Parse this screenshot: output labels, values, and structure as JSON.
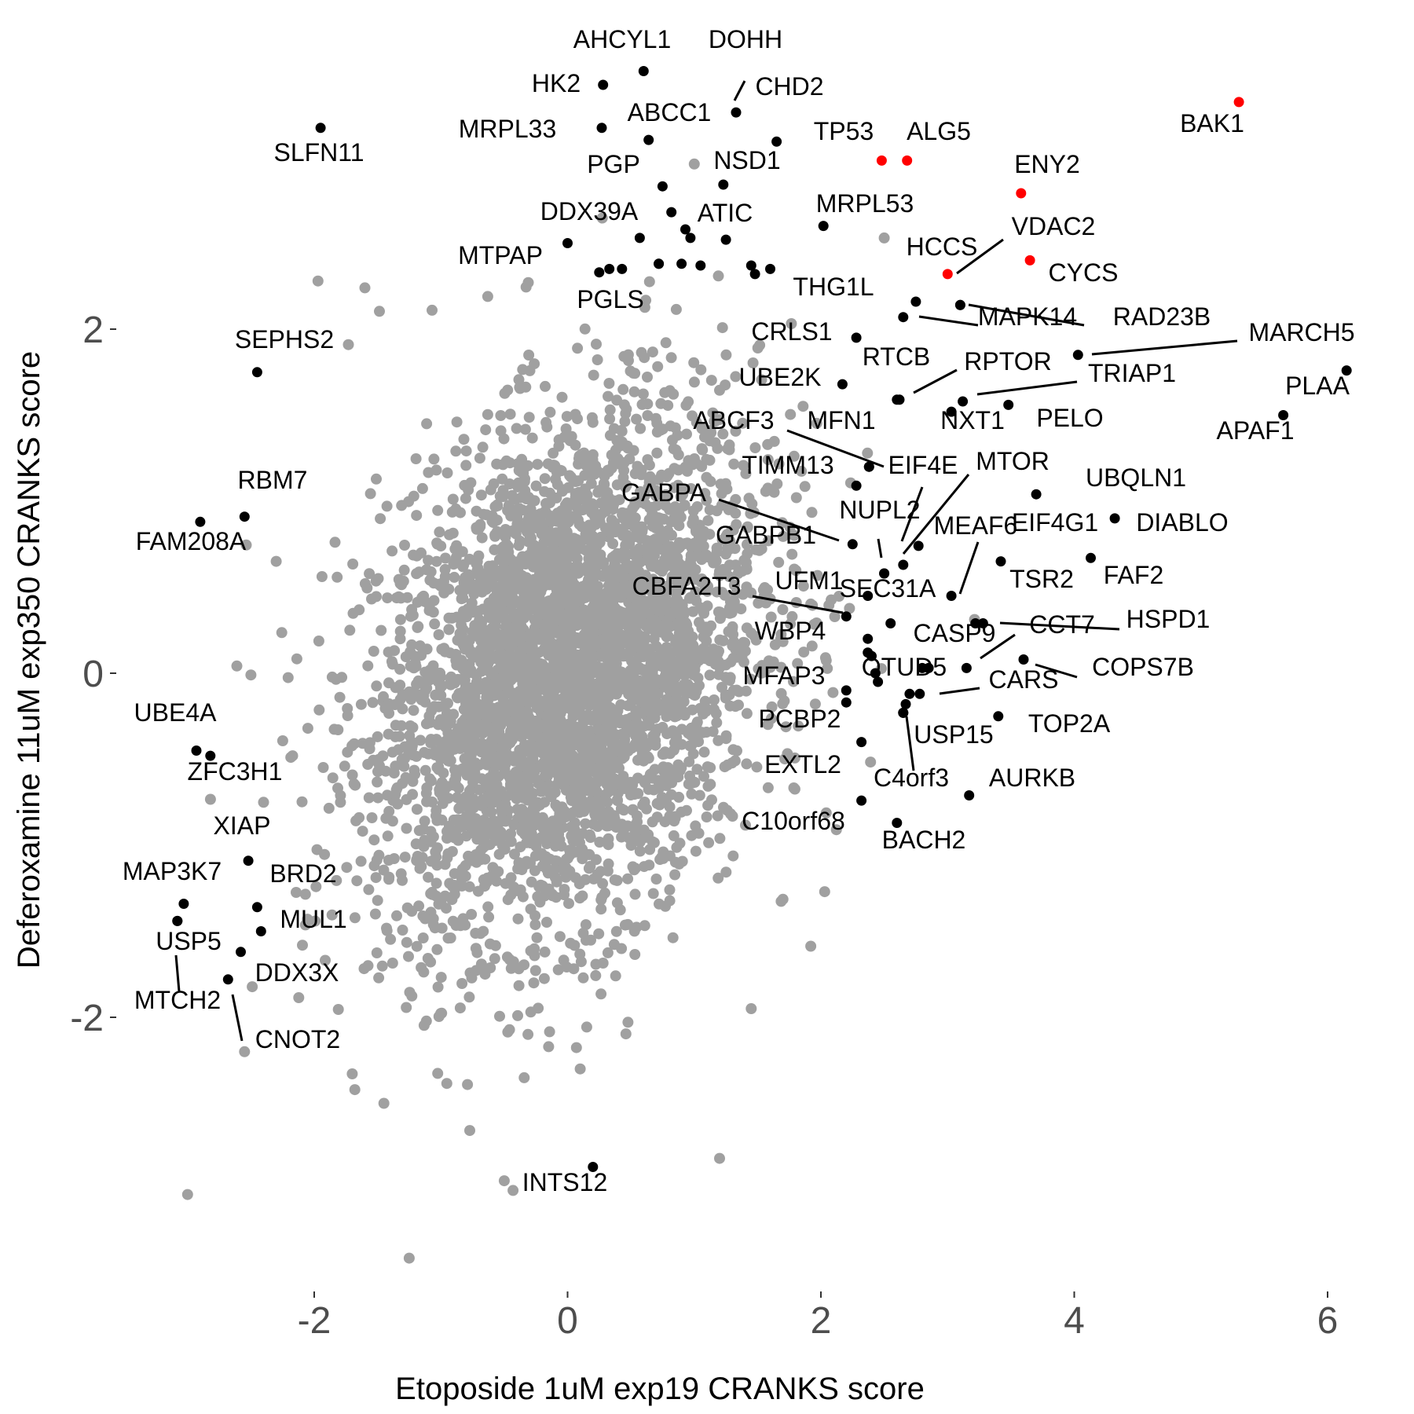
{
  "chart_data": {
    "type": "scatter",
    "title": "",
    "xlabel": "Etoposide 1uM exp19 CRANKS score",
    "ylabel": "Deferoxamine 11uM exp350 CRANKS score",
    "xlim": [
      -3.2,
      6.3
    ],
    "ylim": [
      -3.55,
      3.55
    ],
    "x_ticks": [
      -2,
      0,
      2,
      4,
      6
    ],
    "x_tick_labels": [
      "-2",
      "0",
      "2",
      "4",
      "6"
    ],
    "y_ticks": [
      -2,
      0,
      2
    ],
    "y_tick_labels": [
      "-2",
      "0",
      "2"
    ],
    "grid": false,
    "legend": "none",
    "colors": {
      "background_points": "#a0a0a0",
      "labeled_points": "#000000",
      "highlighted_points": "#ff0000",
      "tick_labels": "#4d4d4d"
    },
    "background_cloud": {
      "n": 4000,
      "x_mean": 0.0,
      "y_mean": 0.0,
      "x_sd": 0.75,
      "y_sd": 0.75,
      "corr": 0.3
    },
    "background_outliers": [
      [
        -1.97,
        2.28
      ],
      [
        -1.6,
        2.24
      ],
      [
        -1.73,
        1.91
      ],
      [
        -1.07,
        2.11
      ],
      [
        -0.63,
        2.19
      ],
      [
        1.0,
        2.96
      ],
      [
        2.5,
        2.53
      ],
      [
        -2.05,
        -0.32
      ],
      [
        -3.0,
        -3.03
      ],
      [
        -1.25,
        -3.4
      ],
      [
        -0.5,
        -2.95
      ],
      [
        1.2,
        -2.82
      ],
      [
        2.03,
        -1.27
      ],
      [
        -2.5,
        -0.01
      ],
      [
        -2.4,
        -0.75
      ],
      [
        0.1,
        -2.3
      ],
      [
        -1.45,
        -2.5
      ],
      [
        1.45,
        -1.95
      ],
      [
        -2.55,
        -2.2
      ],
      [
        -2.3,
        0.65
      ]
    ],
    "points": [
      {
        "gene": "AHCYL1",
        "x": 0.6,
        "y": 3.5,
        "highlight": false
      },
      {
        "gene": "HK2",
        "x": 0.28,
        "y": 3.42,
        "highlight": false
      },
      {
        "gene": "DOHH",
        "x": 1.33,
        "y": 3.26,
        "highlight": false
      },
      {
        "gene": "CHD2",
        "x": 1.65,
        "y": 3.09,
        "highlight": false
      },
      {
        "gene": "MRPL33",
        "x": 0.27,
        "y": 3.17,
        "highlight": false
      },
      {
        "gene": "ABCC1",
        "x": 0.64,
        "y": 3.1,
        "highlight": false
      },
      {
        "gene": "SLFN11",
        "x": -1.95,
        "y": 3.17,
        "highlight": false
      },
      {
        "gene": "BAK1",
        "x": 5.3,
        "y": 3.32,
        "highlight": true
      },
      {
        "gene": "TP53",
        "x": 2.48,
        "y": 2.98,
        "highlight": true
      },
      {
        "gene": "ALG5",
        "x": 2.68,
        "y": 2.98,
        "highlight": true
      },
      {
        "gene": "ENY2",
        "x": 3.58,
        "y": 2.79,
        "highlight": true
      },
      {
        "gene": "CYCS",
        "x": 3.65,
        "y": 2.4,
        "highlight": true
      },
      {
        "gene": "HCCS",
        "x": 3.0,
        "y": 2.32,
        "highlight": true
      },
      {
        "gene": "NSD1",
        "x": 1.23,
        "y": 2.84,
        "highlight": false
      },
      {
        "gene": "PGP",
        "x": 0.75,
        "y": 2.83,
        "highlight": false
      },
      {
        "gene": "DDX39A",
        "x": 0.82,
        "y": 2.68,
        "highlight": false
      },
      {
        "gene": "ATIC",
        "x": 0.93,
        "y": 2.58,
        "highlight": false
      },
      {
        "gene": "MTPAP",
        "x": 0.0,
        "y": 2.5,
        "highlight": false
      },
      {
        "gene": "PGLS",
        "x": 0.72,
        "y": 2.38,
        "highlight": false
      },
      {
        "gene": "MRPL53",
        "x": 2.02,
        "y": 2.6,
        "highlight": false
      },
      {
        "gene": "VDAC2",
        "x": 3.1,
        "y": 2.14,
        "highlight": false
      },
      {
        "gene": "THG1L",
        "x": 2.75,
        "y": 2.16,
        "highlight": false
      },
      {
        "gene": "MAPK14",
        "x": 2.65,
        "y": 2.07,
        "highlight": false
      },
      {
        "gene": "RAD23B",
        "x": 3.1,
        "y": 2.14,
        "highlight": false
      },
      {
        "gene": "CRLS1",
        "x": 2.28,
        "y": 1.95,
        "highlight": false
      },
      {
        "gene": "MARCH5",
        "x": 4.03,
        "y": 1.85,
        "highlight": false
      },
      {
        "gene": "SEPHS2",
        "x": -2.45,
        "y": 1.75,
        "highlight": false
      },
      {
        "gene": "RTCB",
        "x": 2.6,
        "y": 1.59,
        "highlight": false
      },
      {
        "gene": "RPTOR",
        "x": 2.62,
        "y": 1.59,
        "highlight": false
      },
      {
        "gene": "UBE2K",
        "x": 2.17,
        "y": 1.68,
        "highlight": false
      },
      {
        "gene": "TRIAP1",
        "x": 3.12,
        "y": 1.58,
        "highlight": false
      },
      {
        "gene": "NXT1",
        "x": 3.03,
        "y": 1.52,
        "highlight": false
      },
      {
        "gene": "PELO",
        "x": 3.48,
        "y": 1.56,
        "highlight": false
      },
      {
        "gene": "PLAA",
        "x": 6.15,
        "y": 1.76,
        "highlight": false
      },
      {
        "gene": "APAF1",
        "x": 5.65,
        "y": 1.5,
        "highlight": false
      },
      {
        "gene": "ABCF3",
        "x": 2.38,
        "y": 1.2,
        "highlight": false
      },
      {
        "gene": "MFN1",
        "x": 2.38,
        "y": 1.2,
        "highlight": false
      },
      {
        "gene": "TIMM13",
        "x": 2.28,
        "y": 1.09,
        "highlight": false
      },
      {
        "gene": "EIF4E",
        "x": 2.65,
        "y": 0.63,
        "highlight": false
      },
      {
        "gene": "MTOR",
        "x": 2.77,
        "y": 0.74,
        "highlight": false
      },
      {
        "gene": "UBQLN1",
        "x": 3.7,
        "y": 1.04,
        "highlight": false
      },
      {
        "gene": "DIABLO",
        "x": 4.32,
        "y": 0.9,
        "highlight": false
      },
      {
        "gene": "GABPA",
        "x": 2.25,
        "y": 0.75,
        "highlight": false
      },
      {
        "gene": "GABPB1",
        "x": 2.5,
        "y": 0.58,
        "highlight": false
      },
      {
        "gene": "NUPL2",
        "x": 2.5,
        "y": 0.58,
        "highlight": false
      },
      {
        "gene": "MEAF6",
        "x": 3.03,
        "y": 0.45,
        "highlight": false
      },
      {
        "gene": "EIF4G1",
        "x": 3.42,
        "y": 0.65,
        "highlight": false
      },
      {
        "gene": "FAF2",
        "x": 4.13,
        "y": 0.67,
        "highlight": false
      },
      {
        "gene": "RBM7",
        "x": -2.55,
        "y": 0.91,
        "highlight": false
      },
      {
        "gene": "FAM208A",
        "x": -2.9,
        "y": 0.88,
        "highlight": false
      },
      {
        "gene": "SEC31A",
        "x": 2.37,
        "y": 0.45,
        "highlight": false
      },
      {
        "gene": "UFM1",
        "x": 2.55,
        "y": 0.29,
        "highlight": false
      },
      {
        "gene": "CBFA2T3",
        "x": 2.2,
        "y": 0.33,
        "highlight": false
      },
      {
        "gene": "TSR2",
        "x": 3.28,
        "y": 0.29,
        "highlight": false
      },
      {
        "gene": "HSPD1",
        "x": 3.22,
        "y": 0.29,
        "highlight": false
      },
      {
        "gene": "CCT7",
        "x": 3.15,
        "y": 0.03,
        "highlight": false
      },
      {
        "gene": "WBP4",
        "x": 2.37,
        "y": 0.2,
        "highlight": false
      },
      {
        "gene": "CASP9",
        "x": 2.37,
        "y": 0.12,
        "highlight": false
      },
      {
        "gene": "COPS7B",
        "x": 3.6,
        "y": 0.08,
        "highlight": false
      },
      {
        "gene": "OTUD5",
        "x": 2.85,
        "y": 0.03,
        "highlight": false
      },
      {
        "gene": "MFAP3",
        "x": 2.2,
        "y": -0.1,
        "highlight": false
      },
      {
        "gene": "CARS",
        "x": 2.78,
        "y": -0.12,
        "highlight": false
      },
      {
        "gene": "PCBP2",
        "x": 2.2,
        "y": -0.17,
        "highlight": false
      },
      {
        "gene": "USP15",
        "x": 2.65,
        "y": -0.23,
        "highlight": false
      },
      {
        "gene": "TOP2A",
        "x": 3.4,
        "y": -0.25,
        "highlight": false
      },
      {
        "gene": "EXTL2",
        "x": 2.32,
        "y": -0.4,
        "highlight": false
      },
      {
        "gene": "C4orf3",
        "x": 2.65,
        "y": -0.23,
        "highlight": false
      },
      {
        "gene": "AURKB",
        "x": 3.17,
        "y": -0.71,
        "highlight": false
      },
      {
        "gene": "C10orf68",
        "x": 2.32,
        "y": -0.74,
        "highlight": false
      },
      {
        "gene": "BACH2",
        "x": 2.6,
        "y": -0.87,
        "highlight": false
      },
      {
        "gene": "UBE4A",
        "x": -2.93,
        "y": -0.45,
        "highlight": false
      },
      {
        "gene": "ZFC3H1",
        "x": -2.82,
        "y": -0.48,
        "highlight": false
      },
      {
        "gene": "XIAP",
        "x": -2.52,
        "y": -1.09,
        "highlight": false
      },
      {
        "gene": "MAP3K7",
        "x": -3.03,
        "y": -1.34,
        "highlight": false
      },
      {
        "gene": "BRD2",
        "x": -2.45,
        "y": -1.36,
        "highlight": false
      },
      {
        "gene": "MUL1",
        "x": -2.42,
        "y": -1.5,
        "highlight": false
      },
      {
        "gene": "USP5",
        "x": -3.08,
        "y": -1.44,
        "highlight": false
      },
      {
        "gene": "DDX3X",
        "x": -2.58,
        "y": -1.62,
        "highlight": false
      },
      {
        "gene": "MTCH2",
        "x": -3.08,
        "y": -1.44,
        "highlight": false
      },
      {
        "gene": "CNOT2",
        "x": -2.68,
        "y": -1.78,
        "highlight": false
      },
      {
        "gene": "INTS12",
        "x": 0.2,
        "y": -2.87,
        "highlight": false
      }
    ],
    "extra_points": [
      [
        0.25,
        2.33
      ],
      [
        0.33,
        2.35
      ],
      [
        0.43,
        2.35
      ],
      [
        0.57,
        2.53
      ],
      [
        0.72,
        2.38
      ],
      [
        0.97,
        2.53
      ],
      [
        1.05,
        2.37
      ],
      [
        1.25,
        2.52
      ],
      [
        1.45,
        2.37
      ],
      [
        1.6,
        2.35
      ],
      [
        0.9,
        2.38
      ],
      [
        1.48,
        2.32
      ],
      [
        2.8,
        0.03
      ],
      [
        2.43,
        0.0
      ],
      [
        2.4,
        0.1
      ],
      [
        2.45,
        -0.05
      ],
      [
        2.7,
        -0.12
      ],
      [
        2.67,
        -0.18
      ]
    ]
  }
}
